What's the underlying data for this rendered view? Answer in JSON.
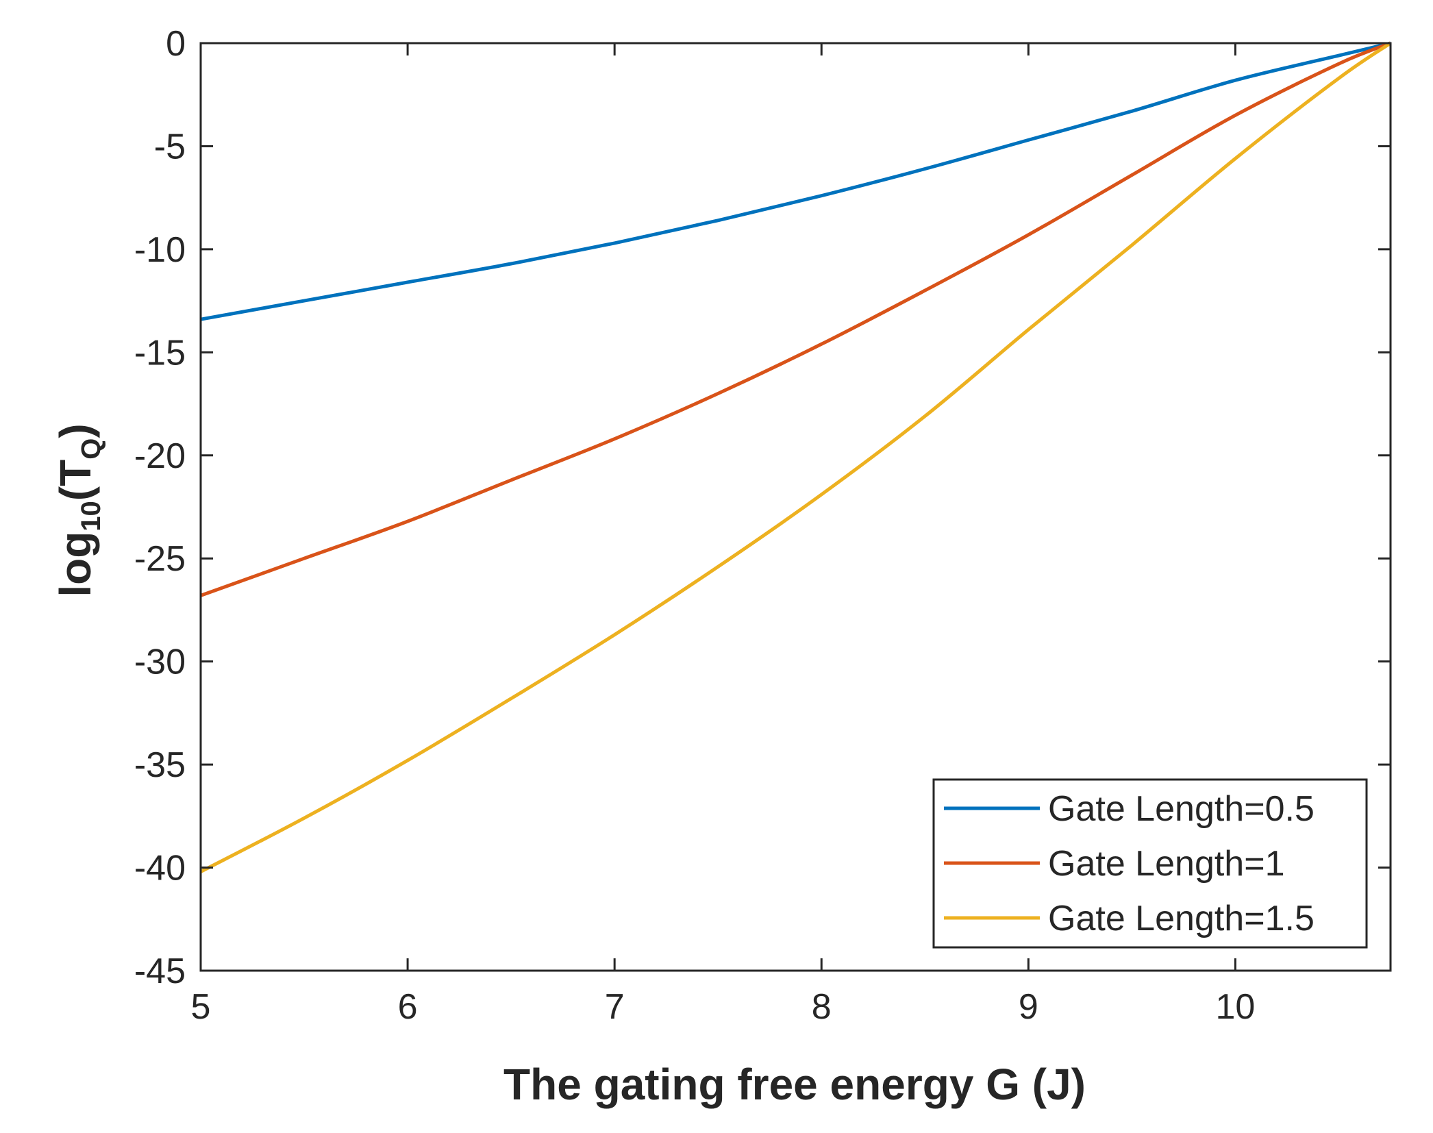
{
  "chart_data": {
    "type": "line",
    "title": "",
    "xlabel": "The gating free energy G (J)",
    "ylabel": {
      "prefix": "log",
      "sub": "10",
      "mid": "(T",
      "sub2": "Q",
      "suffix": ")"
    },
    "xlim": [
      5,
      10.75
    ],
    "ylim": [
      -45,
      0
    ],
    "xticks": [
      5,
      6,
      7,
      8,
      9,
      10
    ],
    "xtick_labels": [
      "5",
      "6",
      "7",
      "8",
      "9",
      "10"
    ],
    "yticks": [
      0,
      -5,
      -10,
      -15,
      -20,
      -25,
      -30,
      -35,
      -40,
      -45
    ],
    "ytick_labels": [
      "0",
      "-5",
      "-10",
      "-15",
      "-20",
      "-25",
      "-30",
      "-35",
      "-40",
      "-45"
    ],
    "grid": false,
    "legend_position": "bottom-right",
    "series": [
      {
        "name": "Gate Length=0.5",
        "color": "#0072BD",
        "x": [
          5,
          5.5,
          6,
          6.5,
          7,
          7.5,
          8,
          8.5,
          9,
          9.5,
          10,
          10.5,
          10.75
        ],
        "y": [
          -13.4,
          -12.5,
          -11.6,
          -10.7,
          -9.7,
          -8.6,
          -7.4,
          -6.1,
          -4.7,
          -3.3,
          -1.8,
          -0.6,
          0
        ]
      },
      {
        "name": "Gate Length=1",
        "color": "#D95319",
        "x": [
          5,
          5.5,
          6,
          6.5,
          7,
          7.5,
          8,
          8.5,
          9,
          9.5,
          10,
          10.5,
          10.75
        ],
        "y": [
          -26.8,
          -25.0,
          -23.2,
          -21.2,
          -19.2,
          -17.0,
          -14.6,
          -12.0,
          -9.3,
          -6.4,
          -3.5,
          -1.0,
          0
        ]
      },
      {
        "name": "Gate Length=1.5",
        "color": "#EDB120",
        "x": [
          5,
          5.5,
          6,
          6.5,
          7,
          7.5,
          8,
          8.5,
          9,
          9.5,
          10,
          10.5,
          10.75
        ],
        "y": [
          -40.2,
          -37.6,
          -34.8,
          -31.8,
          -28.7,
          -25.4,
          -21.9,
          -18.1,
          -13.9,
          -9.8,
          -5.6,
          -1.7,
          0
        ]
      }
    ]
  }
}
